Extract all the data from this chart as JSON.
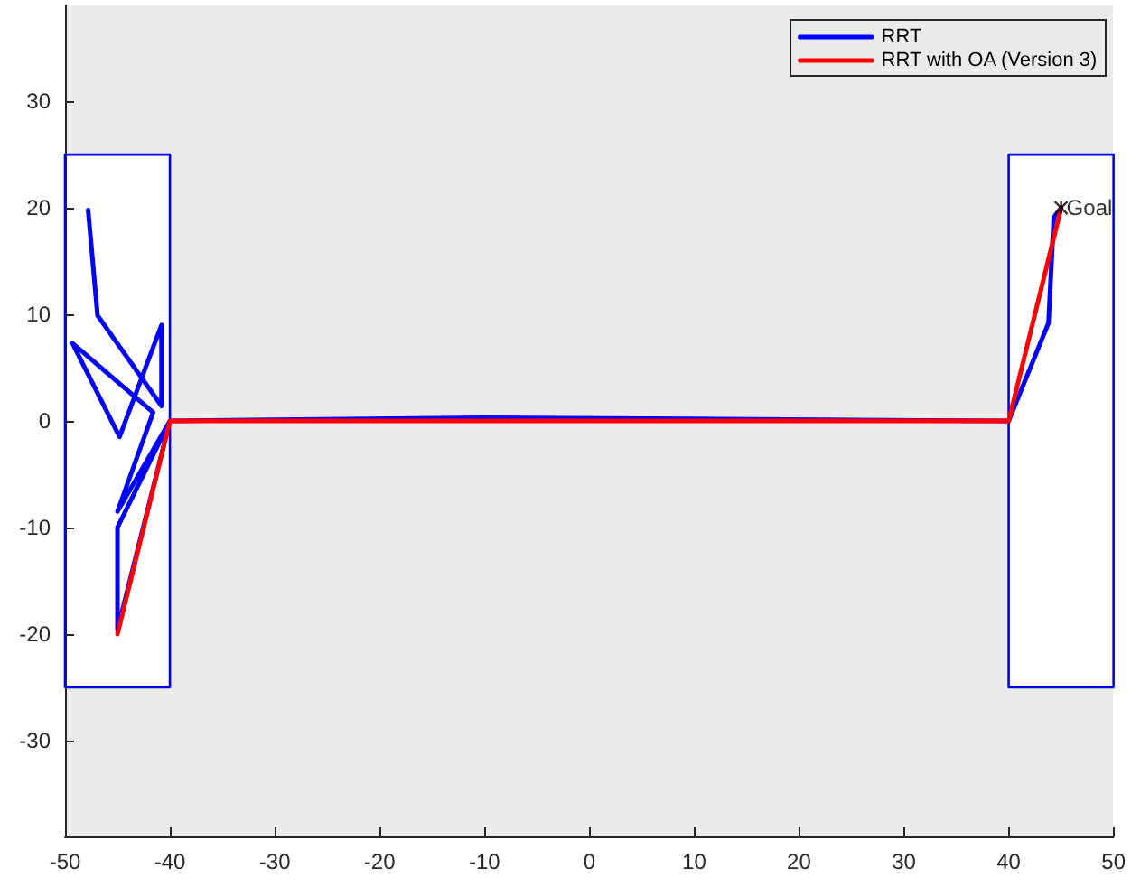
{
  "chart_data": {
    "type": "line",
    "xlim": [
      -50,
      50
    ],
    "xticks": [
      -50,
      -40,
      -30,
      -20,
      -10,
      0,
      10,
      20,
      30,
      40,
      50
    ],
    "ylim": [
      -39,
      39
    ],
    "yticks": [
      -30,
      -20,
      -10,
      0,
      10,
      20,
      30
    ],
    "grid": false,
    "legend": "top right",
    "marker": "none",
    "line_style": "solid",
    "series": [
      {
        "type": "area",
        "color": "#0000e6",
        "x": [
          -50,
          -40,
          -40,
          -50,
          -50
        ],
        "values": [
          -25,
          -25,
          25,
          25,
          -25
        ]
      },
      {
        "type": "area",
        "color": "#0000e6",
        "x": [
          40,
          50,
          50,
          40,
          40
        ],
        "values": [
          -25,
          -25,
          25,
          25,
          -25
        ]
      },
      {
        "name": "RRT",
        "color": "#0000ff",
        "x": [
          -47.8,
          -46.9,
          -40.8,
          -40.8,
          -44.8,
          -49.3,
          -41.6,
          -45,
          -40,
          -45,
          -45,
          -40,
          -10,
          40,
          43.8,
          44.3,
          45
        ],
        "values": [
          19.8,
          9.9,
          1.4,
          9,
          -1.5,
          7.3,
          0.8,
          -8.5,
          0,
          -10,
          -19.6,
          0,
          0.3,
          0,
          9.2,
          19.1,
          20
        ]
      },
      {
        "name": "RRT with OA (Version 3)",
        "color": "#ff0000",
        "x": [
          -45,
          -40,
          40,
          45
        ],
        "values": [
          -20,
          0,
          0,
          20
        ]
      },
      {
        "type": "scatter",
        "marker": "cross",
        "color": "#000000",
        "x": [
          45
        ],
        "values": [
          20
        ]
      }
    ],
    "annotations": [
      {
        "text": "Goal",
        "x": 45,
        "y": 20
      }
    ]
  }
}
